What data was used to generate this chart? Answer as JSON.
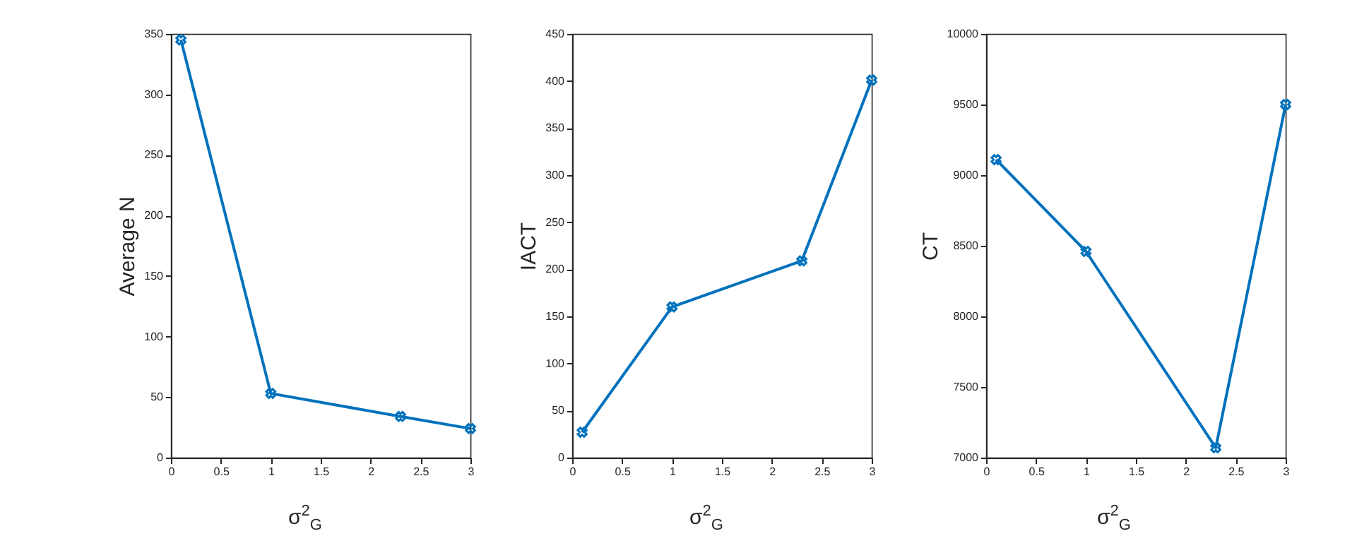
{
  "chart_data": [
    {
      "type": "line",
      "xlabel": "σ$^{2}$$_{G}$",
      "ylabel": "Average N",
      "x": [
        0.1,
        1,
        2.3,
        3
      ],
      "series": [
        {
          "color": "#0072bd",
          "values": [
            345,
            53,
            34,
            24
          ]
        }
      ],
      "xlim": [
        0,
        3
      ],
      "xticks": [
        0,
        0.5,
        1,
        1.5,
        2,
        2.5,
        3
      ],
      "ylim": [
        0,
        350
      ],
      "yticks": [
        0,
        50,
        100,
        150,
        200,
        250,
        300,
        350
      ],
      "grid": false,
      "marker": "cross",
      "line_style": "solid"
    },
    {
      "type": "line",
      "xlabel": "σ$^{2}$$_{G}$",
      "ylabel": "IACT",
      "x": [
        0.1,
        1,
        2.3,
        3
      ],
      "series": [
        {
          "color": "#0072bd",
          "values": [
            27,
            160,
            209,
            401
          ]
        }
      ],
      "xlim": [
        0,
        3
      ],
      "xticks": [
        0,
        0.5,
        1,
        1.5,
        2,
        2.5,
        3
      ],
      "ylim": [
        0,
        450
      ],
      "yticks": [
        0,
        50,
        100,
        150,
        200,
        250,
        300,
        350,
        400,
        450
      ],
      "grid": false,
      "marker": "cross",
      "line_style": "solid"
    },
    {
      "type": "line",
      "xlabel": "σ$^{2}$$_{G}$",
      "ylabel": "CT",
      "x": [
        0.1,
        1,
        2.3,
        3
      ],
      "series": [
        {
          "color": "#0072bd",
          "values": [
            9110,
            8460,
            7070,
            9500
          ]
        }
      ],
      "xlim": [
        0,
        3
      ],
      "xticks": [
        0,
        0.5,
        1,
        1.5,
        2,
        2.5,
        3
      ],
      "ylim": [
        7000,
        10000
      ],
      "yticks": [
        7000,
        7500,
        8000,
        8500,
        9000,
        9500,
        10000
      ],
      "grid": false,
      "marker": "cross",
      "line_style": "solid"
    }
  ]
}
